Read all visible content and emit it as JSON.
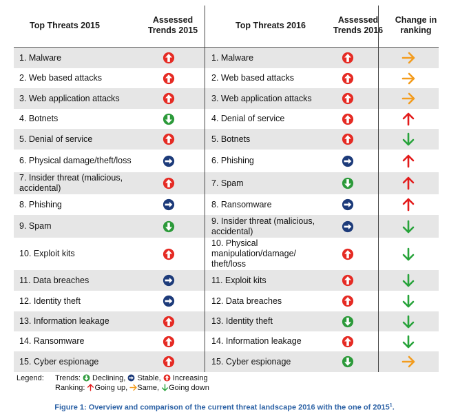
{
  "headers": {
    "threats_2015": "Top Threats 2015",
    "trends_2015": "Assessed Trends 2015",
    "threats_2016": "Top Threats 2016",
    "trends_2016": "Assessed Trends 2016",
    "change": "Change in ranking"
  },
  "rows": [
    {
      "t2015": "1. Malware",
      "tr2015": "increasing",
      "t2016": "1. Malware",
      "tr2016": "increasing",
      "change": "same"
    },
    {
      "t2015": "2. Web based attacks",
      "tr2015": "increasing",
      "t2016": "2. Web based attacks",
      "tr2016": "increasing",
      "change": "same"
    },
    {
      "t2015": "3. Web application attacks",
      "tr2015": "increasing",
      "t2016": "3. Web application attacks",
      "tr2016": "increasing",
      "change": "same"
    },
    {
      "t2015": "4. Botnets",
      "tr2015": "declining",
      "t2016": "4. Denial of service",
      "tr2016": "increasing",
      "change": "up"
    },
    {
      "t2015": "5. Denial of service",
      "tr2015": "increasing",
      "t2016": "5. Botnets",
      "tr2016": "increasing",
      "change": "down"
    },
    {
      "t2015": "6. Physical damage/theft/loss",
      "tr2015": "stable",
      "t2016": "6. Phishing",
      "tr2016": "stable",
      "change": "up"
    },
    {
      "t2015": "7. Insider threat (malicious, accidental)",
      "tr2015": "increasing",
      "t2016": "7. Spam",
      "tr2016": "declining",
      "change": "up"
    },
    {
      "t2015": "8. Phishing",
      "tr2015": "stable",
      "t2016": "8. Ransomware",
      "tr2016": "stable",
      "change": "up"
    },
    {
      "t2015": "9. Spam",
      "tr2015": "declining",
      "t2016": "9. Insider threat (malicious, accidental)",
      "tr2016": "stable",
      "change": "down"
    },
    {
      "t2015": "10. Exploit kits",
      "tr2015": "increasing",
      "t2016": "10. Physical manipulation/damage/ theft/loss",
      "tr2016": "increasing",
      "change": "down"
    },
    {
      "t2015": "11. Data breaches",
      "tr2015": "stable",
      "t2016": "11. Exploit kits",
      "tr2016": "increasing",
      "change": "down"
    },
    {
      "t2015": "12. Identity theft",
      "tr2015": "stable",
      "t2016": "12. Data breaches",
      "tr2016": "increasing",
      "change": "down"
    },
    {
      "t2015": "13. Information leakage",
      "tr2015": "increasing",
      "t2016": "13. Identity theft",
      "tr2016": "declining",
      "change": "down"
    },
    {
      "t2015": "14. Ransomware",
      "tr2015": "increasing",
      "t2016": "14. Information leakage",
      "tr2016": "increasing",
      "change": "down"
    },
    {
      "t2015": "15. Cyber espionage",
      "tr2015": "increasing",
      "t2016": "15. Cyber espionage",
      "tr2016": "declining",
      "change": "same"
    }
  ],
  "legend": {
    "label": "Legend:",
    "trends_prefix": "Trends:",
    "declining": "Declining,",
    "stable": "Stable,",
    "increasing": "Increasing",
    "ranking_prefix": "Ranking:",
    "going_up": "Going up,",
    "same": "Same,",
    "going_down": "Going down"
  },
  "caption": {
    "text": "Figure 1: Overview and comparison of the current threat landscape 2016 with the one of 2015",
    "footnote": "1",
    "end": "."
  },
  "colors": {
    "increasing": "#e52b24",
    "declining": "#2c9a3a",
    "stable": "#1d3b7a",
    "up": "#e31b1b",
    "down": "#27a33a",
    "same": "#f39c1e",
    "row_shade": "#e6e6e6",
    "caption": "#2e63a6"
  }
}
